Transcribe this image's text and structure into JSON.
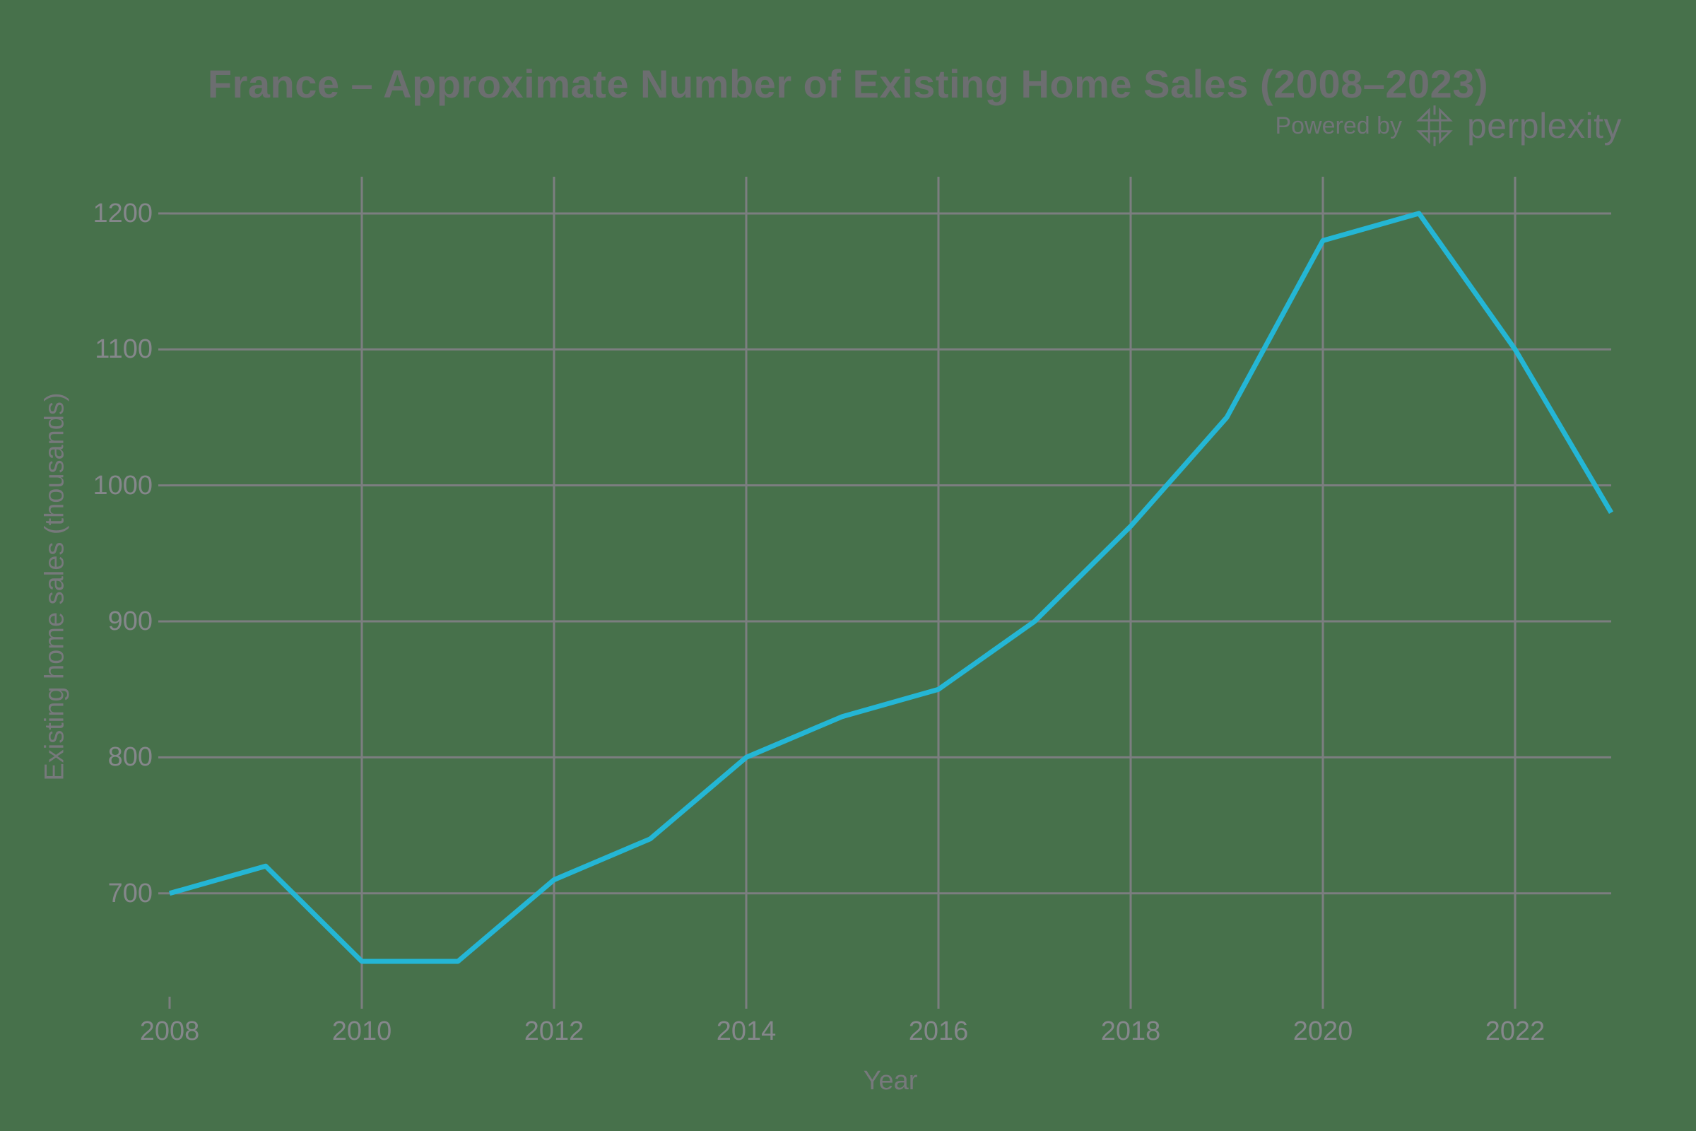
{
  "header": {
    "title": "France – Approximate Number of Existing Home Sales (2008–2023)",
    "powered_by": "Powered by",
    "brand": "perplexity",
    "brand_logo_icon": "perplexity-asterisk-logo"
  },
  "chart_data": {
    "type": "line",
    "title": "France – Approximate Number of Existing Home Sales (2008–2023)",
    "xlabel": "Year",
    "ylabel": "Existing home sales (thousands)",
    "x": [
      2008,
      2009,
      2010,
      2011,
      2012,
      2013,
      2014,
      2015,
      2016,
      2017,
      2018,
      2019,
      2020,
      2021,
      2022,
      2023
    ],
    "series": [
      {
        "name": "Existing home sales (thousands)",
        "values": [
          700,
          720,
          650,
          650,
          710,
          740,
          800,
          830,
          850,
          900,
          970,
          1050,
          1180,
          1200,
          1100,
          980
        ]
      }
    ],
    "xticks": [
      2008,
      2010,
      2012,
      2014,
      2016,
      2018,
      2020,
      2022
    ],
    "yticks": [
      700,
      800,
      900,
      1000,
      1100,
      1200
    ],
    "xlim": [
      2008,
      2023
    ],
    "ylim": [
      624,
      1227
    ],
    "grid": true,
    "legend": "none",
    "line_color": "#24b6d5",
    "grid_color": "#7c7e80",
    "tick_label_color": "#85878b",
    "axis_title_color": "#77797c",
    "title_color": "#6c6e70",
    "background_color": "#47714b"
  }
}
